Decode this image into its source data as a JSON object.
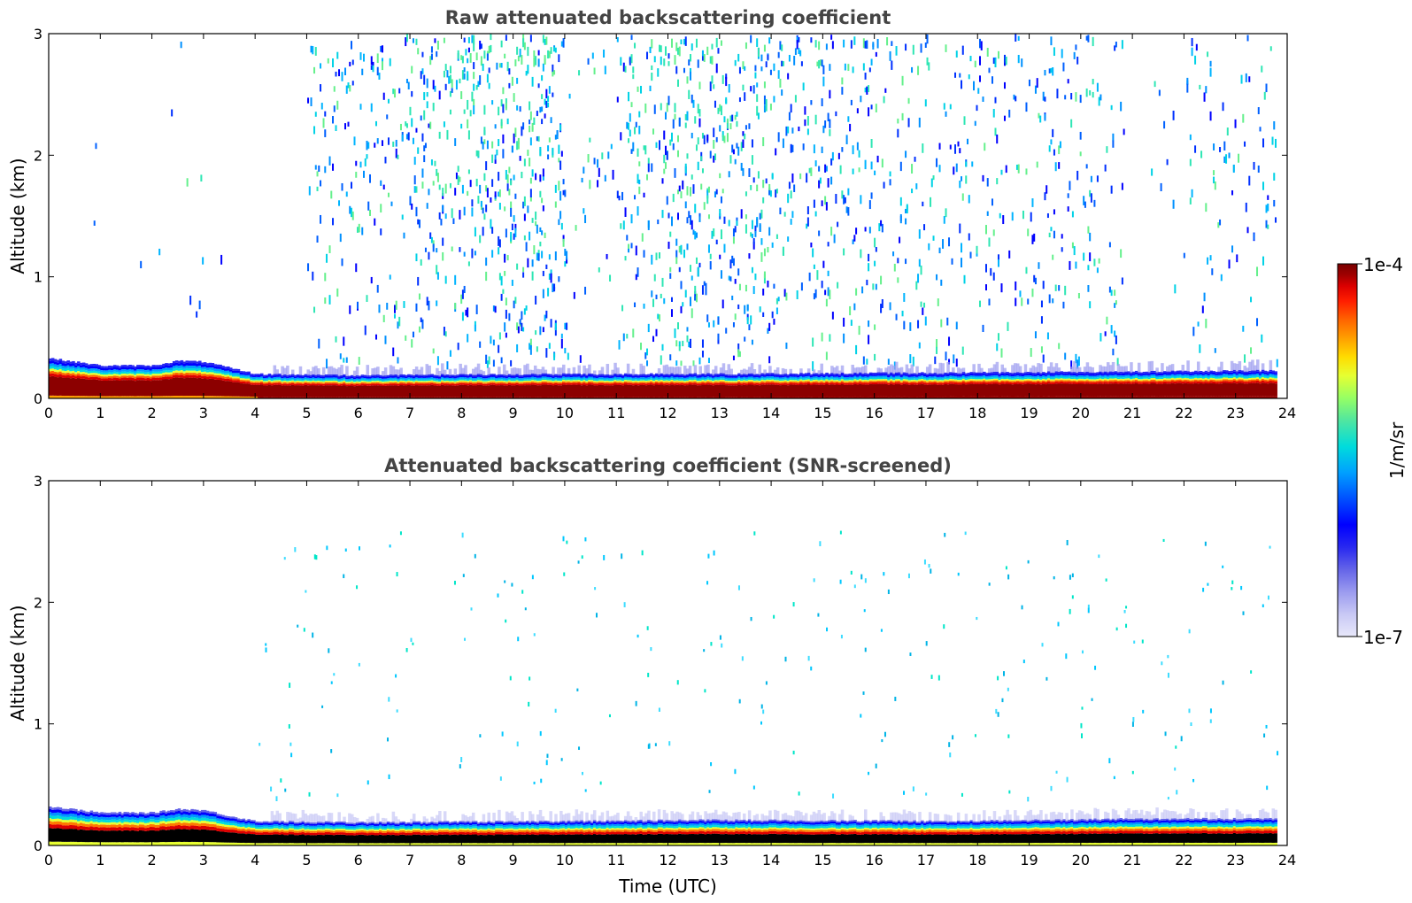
{
  "chart_data": [
    {
      "type": "heatmap",
      "title": "Raw attenuated backscattering coefficient",
      "xlabel": "",
      "ylabel": "Altitude (km)",
      "xlim": [
        0,
        24
      ],
      "ylim": [
        0,
        3
      ],
      "x_ticks": [
        "0",
        "1",
        "2",
        "3",
        "4",
        "5",
        "6",
        "7",
        "8",
        "9",
        "10",
        "11",
        "12",
        "13",
        "14",
        "15",
        "16",
        "17",
        "18",
        "19",
        "20",
        "21",
        "22",
        "23",
        "24"
      ],
      "y_ticks": [
        "0",
        "1",
        "2",
        "3"
      ],
      "screened": false,
      "layer_top_km": [
        {
          "t": 0,
          "z": 0.33
        },
        {
          "t": 1,
          "z": 0.27
        },
        {
          "t": 2,
          "z": 0.27
        },
        {
          "t": 2.5,
          "z": 0.31
        },
        {
          "t": 3,
          "z": 0.3
        },
        {
          "t": 3.5,
          "z": 0.25
        },
        {
          "t": 4,
          "z": 0.2
        },
        {
          "t": 6,
          "z": 0.19
        },
        {
          "t": 10,
          "z": 0.2
        },
        {
          "t": 12.5,
          "z": 0.2
        },
        {
          "t": 17.5,
          "z": 0.21
        },
        {
          "t": 21,
          "z": 0.22
        },
        {
          "t": 23.8,
          "z": 0.23
        }
      ],
      "data_gaps_utc": [
        [
          3.6,
          4.05
        ],
        [
          20.85,
          21.35
        ]
      ],
      "noise_density_by_hour": [
        0.1,
        0.12,
        0.18,
        0.1,
        0.06,
        0.55,
        0.6,
        0.75,
        0.85,
        0.85,
        0.35,
        0.7,
        0.9,
        0.8,
        0.7,
        0.65,
        0.55,
        0.55,
        0.55,
        0.6,
        0.55,
        0.2,
        0.45,
        0.45
      ]
    },
    {
      "type": "heatmap",
      "title": "Attenuated backscattering coefficient (SNR-screened)",
      "xlabel": "Time (UTC)",
      "ylabel": "Altitude (km)",
      "xlim": [
        0,
        24
      ],
      "ylim": [
        0,
        3
      ],
      "x_ticks": [
        "0",
        "1",
        "2",
        "3",
        "4",
        "5",
        "6",
        "7",
        "8",
        "9",
        "10",
        "11",
        "12",
        "13",
        "14",
        "15",
        "16",
        "17",
        "18",
        "19",
        "20",
        "21",
        "22",
        "23",
        "24"
      ],
      "y_ticks": [
        "0",
        "1",
        "2",
        "3"
      ],
      "screened": true,
      "layer_top_km": [
        {
          "t": 0,
          "z": 0.32
        },
        {
          "t": 1,
          "z": 0.27
        },
        {
          "t": 2,
          "z": 0.27
        },
        {
          "t": 2.5,
          "z": 0.3
        },
        {
          "t": 3,
          "z": 0.29
        },
        {
          "t": 3.5,
          "z": 0.24
        },
        {
          "t": 4,
          "z": 0.2
        },
        {
          "t": 6,
          "z": 0.19
        },
        {
          "t": 10,
          "z": 0.2
        },
        {
          "t": 12.5,
          "z": 0.21
        },
        {
          "t": 17.5,
          "z": 0.2
        },
        {
          "t": 21,
          "z": 0.22
        },
        {
          "t": 23.8,
          "z": 0.22
        }
      ]
    }
  ],
  "colorbar": {
    "label": "1/m/sr",
    "min_label": "1e-7",
    "max_label": "1e-4",
    "scale": "log",
    "colormap": [
      "#e8e8fa",
      "#c8c8f5",
      "#9b9bef",
      "#6464e8",
      "#2828f0",
      "#0000ff",
      "#0050ff",
      "#00a0ff",
      "#00dcdc",
      "#50e6a0",
      "#96ff64",
      "#e6ff32",
      "#ffdc00",
      "#ffa000",
      "#ff6400",
      "#ff1e00",
      "#dc0000",
      "#a00000",
      "#780000"
    ]
  }
}
